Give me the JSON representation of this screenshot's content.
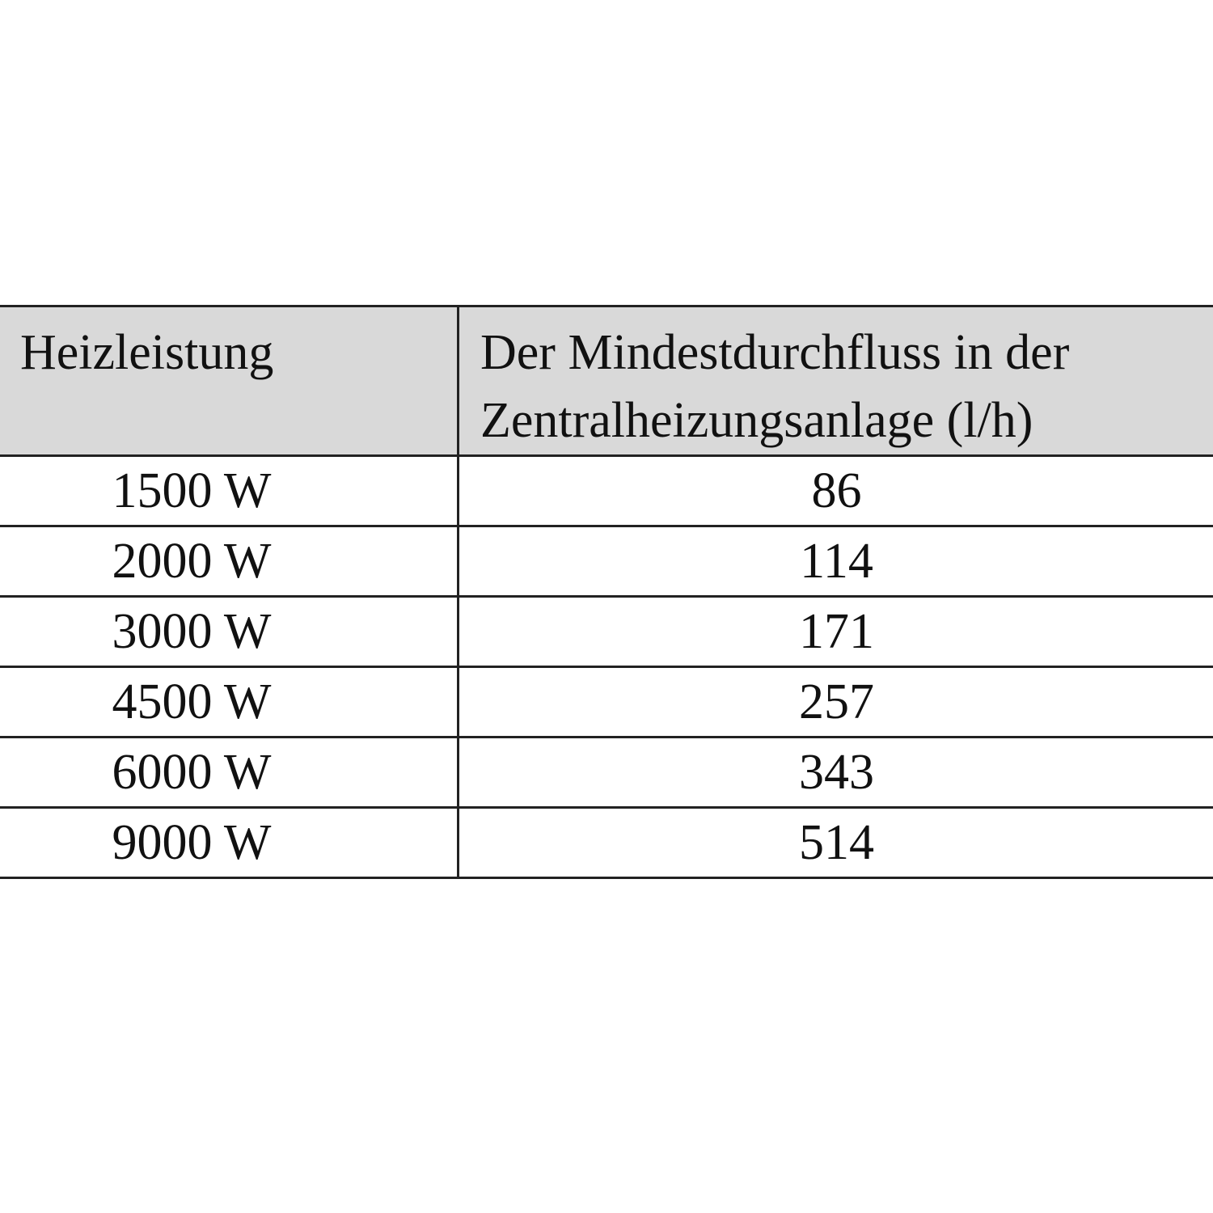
{
  "table": {
    "header": [
      "Heizleistung",
      "Der Mindestdurchfluss in der Zentralheizungsanlage (l/h)"
    ],
    "rows": [
      [
        "1500 W",
        "86"
      ],
      [
        "2000 W",
        "114"
      ],
      [
        "3000 W",
        "171"
      ],
      [
        "4500 W",
        "257"
      ],
      [
        "6000 W",
        "343"
      ],
      [
        "9000 W",
        "514"
      ]
    ]
  }
}
